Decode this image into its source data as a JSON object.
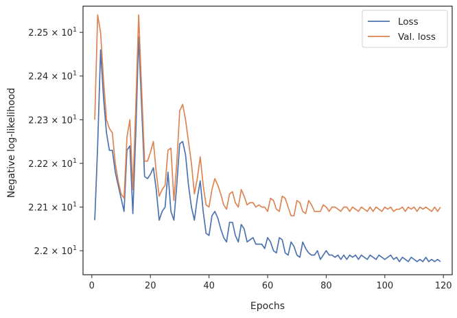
{
  "chart_data": {
    "type": "line",
    "title": "",
    "xlabel": "Epochs",
    "ylabel": "Negative log-likelihood",
    "xlim": [
      -3,
      123
    ],
    "ylim": [
      21.945,
      22.56
    ],
    "x_ticks": [
      0,
      20,
      40,
      60,
      80,
      100,
      120
    ],
    "x_tick_labels": [
      "0",
      "20",
      "40",
      "60",
      "80",
      "100",
      "120"
    ],
    "y_ticks": [
      {
        "value": 22.5,
        "mantissa": "2.25",
        "exponent": "1"
      },
      {
        "value": 22.4,
        "mantissa": "2.24",
        "exponent": "1"
      },
      {
        "value": 22.3,
        "mantissa": "2.23",
        "exponent": "1"
      },
      {
        "value": 22.2,
        "mantissa": "2.22",
        "exponent": "1"
      },
      {
        "value": 22.1,
        "mantissa": "2.21",
        "exponent": "1"
      },
      {
        "value": 22.0,
        "mantissa": "2.2",
        "exponent": "1"
      }
    ],
    "y_tick_base": "× 10",
    "legend_position": "top-right",
    "grid": false,
    "series": [
      {
        "name": "Loss",
        "color": "#4c72b0",
        "x": [
          1,
          2,
          3,
          4,
          5,
          6,
          7,
          8,
          9,
          10,
          11,
          12,
          13,
          14,
          15,
          16,
          17,
          18,
          19,
          20,
          21,
          22,
          23,
          24,
          25,
          26,
          27,
          28,
          29,
          30,
          31,
          32,
          33,
          34,
          35,
          36,
          37,
          38,
          39,
          40,
          41,
          42,
          43,
          44,
          45,
          46,
          47,
          48,
          49,
          50,
          51,
          52,
          53,
          54,
          55,
          56,
          57,
          58,
          59,
          60,
          61,
          62,
          63,
          64,
          65,
          66,
          67,
          68,
          69,
          70,
          71,
          72,
          73,
          74,
          75,
          76,
          77,
          78,
          79,
          80,
          81,
          82,
          83,
          84,
          85,
          86,
          87,
          88,
          89,
          90,
          91,
          92,
          93,
          94,
          95,
          96,
          97,
          98,
          99,
          100,
          101,
          102,
          103,
          104,
          105,
          106,
          107,
          108,
          109,
          110,
          111,
          112,
          113,
          114,
          115,
          116,
          117,
          118,
          119
        ],
        "values": [
          22.07,
          22.24,
          22.46,
          22.35,
          22.27,
          22.23,
          22.23,
          22.18,
          22.15,
          22.12,
          22.09,
          22.23,
          22.24,
          22.085,
          22.27,
          22.49,
          22.33,
          22.17,
          22.165,
          22.175,
          22.19,
          22.14,
          22.07,
          22.09,
          22.1,
          22.18,
          22.09,
          22.07,
          22.15,
          22.245,
          22.25,
          22.22,
          22.15,
          22.1,
          22.07,
          22.12,
          22.16,
          22.09,
          22.04,
          22.035,
          22.08,
          22.09,
          22.075,
          22.05,
          22.03,
          22.02,
          22.065,
          22.065,
          22.035,
          22.02,
          22.06,
          22.05,
          22.02,
          22.025,
          22.03,
          22.015,
          22.015,
          22.015,
          22.005,
          22.03,
          22.02,
          22.0,
          21.995,
          22.03,
          22.025,
          21.995,
          21.99,
          22.02,
          22.01,
          21.99,
          21.985,
          22.02,
          22.005,
          21.995,
          21.99,
          21.99,
          22.0,
          21.98,
          21.99,
          22.0,
          21.99,
          21.99,
          21.985,
          21.99,
          21.98,
          21.99,
          21.98,
          21.99,
          21.985,
          21.99,
          21.98,
          21.99,
          21.985,
          21.98,
          21.99,
          21.985,
          21.98,
          21.99,
          21.985,
          21.98,
          21.985,
          21.99,
          21.98,
          21.985,
          21.975,
          21.985,
          21.98,
          21.975,
          21.985,
          21.98,
          21.975,
          21.98,
          21.975,
          21.985,
          21.975,
          21.98,
          21.975,
          21.98,
          21.975
        ]
      },
      {
        "name": "Val. loss",
        "color": "#dd8452",
        "x": [
          1,
          2,
          3,
          4,
          5,
          6,
          7,
          8,
          9,
          10,
          11,
          12,
          13,
          14,
          15,
          16,
          17,
          18,
          19,
          20,
          21,
          22,
          23,
          24,
          25,
          26,
          27,
          28,
          29,
          30,
          31,
          32,
          33,
          34,
          35,
          36,
          37,
          38,
          39,
          40,
          41,
          42,
          43,
          44,
          45,
          46,
          47,
          48,
          49,
          50,
          51,
          52,
          53,
          54,
          55,
          56,
          57,
          58,
          59,
          60,
          61,
          62,
          63,
          64,
          65,
          66,
          67,
          68,
          69,
          70,
          71,
          72,
          73,
          74,
          75,
          76,
          77,
          78,
          79,
          80,
          81,
          82,
          83,
          84,
          85,
          86,
          87,
          88,
          89,
          90,
          91,
          92,
          93,
          94,
          95,
          96,
          97,
          98,
          99,
          100,
          101,
          102,
          103,
          104,
          105,
          106,
          107,
          108,
          109,
          110,
          111,
          112,
          113,
          114,
          115,
          116,
          117,
          118,
          119
        ],
        "values": [
          22.3,
          22.54,
          22.5,
          22.39,
          22.3,
          22.28,
          22.27,
          22.2,
          22.16,
          22.13,
          22.12,
          22.26,
          22.3,
          22.14,
          22.33,
          22.54,
          22.37,
          22.205,
          22.205,
          22.225,
          22.25,
          22.18,
          22.125,
          22.14,
          22.15,
          22.23,
          22.235,
          22.115,
          22.2,
          22.32,
          22.335,
          22.3,
          22.25,
          22.2,
          22.13,
          22.165,
          22.215,
          22.15,
          22.105,
          22.1,
          22.14,
          22.165,
          22.15,
          22.13,
          22.105,
          22.095,
          22.13,
          22.135,
          22.11,
          22.1,
          22.14,
          22.125,
          22.105,
          22.11,
          22.11,
          22.1,
          22.105,
          22.1,
          22.1,
          22.09,
          22.12,
          22.115,
          22.095,
          22.09,
          22.125,
          22.12,
          22.1,
          22.08,
          22.08,
          22.115,
          22.11,
          22.09,
          22.085,
          22.115,
          22.105,
          22.09,
          22.09,
          22.09,
          22.105,
          22.1,
          22.09,
          22.1,
          22.1,
          22.095,
          22.09,
          22.1,
          22.1,
          22.09,
          22.1,
          22.095,
          22.09,
          22.1,
          22.095,
          22.09,
          22.1,
          22.09,
          22.1,
          22.095,
          22.09,
          22.1,
          22.095,
          22.1,
          22.09,
          22.095,
          22.095,
          22.1,
          22.09,
          22.1,
          22.095,
          22.1,
          22.09,
          22.1,
          22.095,
          22.1,
          22.095,
          22.09,
          22.1,
          22.09,
          22.1
        ]
      }
    ]
  }
}
